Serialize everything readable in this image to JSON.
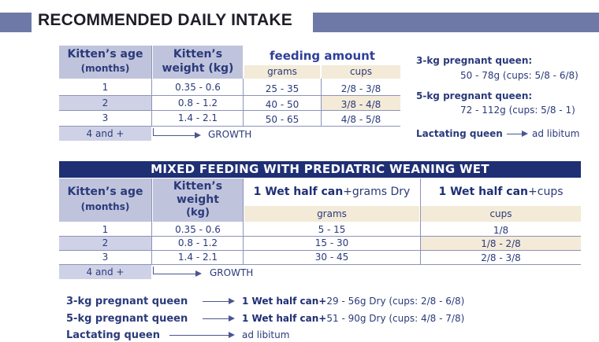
{
  "title": "RECOMMENDED DAILY INTAKE",
  "table1": {
    "col_age": "Kitten’s age",
    "col_age_unit": "(months)",
    "col_weight": "Kitten’s",
    "col_weight2": "weight (kg)",
    "col_feeding": "feeding amount",
    "col_grams": "grams",
    "col_cups": "cups",
    "rows": [
      {
        "age": "1",
        "weight": "0.35 - 0.6",
        "grams": "25 - 35",
        "cups": "2/8 - 3/8"
      },
      {
        "age": "2",
        "weight": "0.8 - 1.2",
        "grams": "40 - 50",
        "cups": "3/8 - 4/8"
      },
      {
        "age": "3",
        "weight": "1.4 - 2.1",
        "grams": "50 - 65",
        "cups": "4/8 - 5/8"
      }
    ],
    "last_age": "4 and +",
    "growth": "GROWTH"
  },
  "queens1": {
    "q3_label": "3-kg pregnant queen:",
    "q3_value": "50 - 78g (cups: 5/8 - 6/8)",
    "q5_label": "5-kg pregnant queen:",
    "q5_value": "72 - 112g (cups: 5/8 - 1)",
    "lact_label": "Lactating queen",
    "lact_value": "ad libitum"
  },
  "table2": {
    "banner": "MIXED FEEDING WITH PREDIATRIC WEANING WET",
    "col_age": "Kitten’s age",
    "col_age_unit": "(months)",
    "col_weight": "Kitten’s",
    "col_weight2": "weight",
    "col_weight3": "(kg)",
    "col_grams_bold": "1 Wet half can",
    "col_grams_rest": "+grams Dry",
    "col_cups_bold": "1 Wet half can",
    "col_cups_rest": "+cups",
    "sub_grams": "grams",
    "sub_cups": "cups",
    "rows": [
      {
        "age": "1",
        "weight": "0.35 - 0.6",
        "grams": "5 - 15",
        "cups": "1/8"
      },
      {
        "age": "2",
        "weight": "0.8 - 1.2",
        "grams": "15 - 30",
        "cups": "1/8 - 2/8"
      },
      {
        "age": "3",
        "weight": "1.4 - 2.1",
        "grams": "30 - 45",
        "cups": "2/8 - 3/8"
      }
    ],
    "last_age": "4 and +",
    "growth": "GROWTH"
  },
  "queens2": {
    "q3_label": "3-kg pregnant queen",
    "q3_bold": "1 Wet half can+",
    "q3_rest": "29 - 56g Dry (cups: 2/8 - 6/8)",
    "q5_label": "5-kg pregnant queen",
    "q5_bold": "1 Wet half can+",
    "q5_rest": "51 - 90g Dry (cups: 4/8 - 7/8)",
    "lact_label": "Lactating queen",
    "lact_value": "ad libitum"
  }
}
